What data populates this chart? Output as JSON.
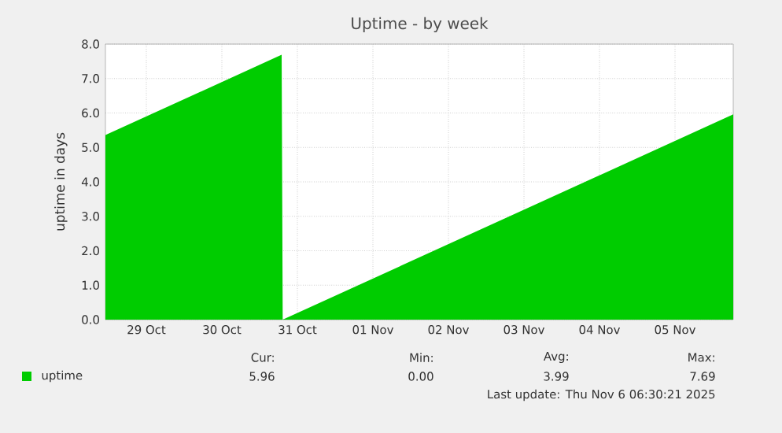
{
  "chart_data": {
    "type": "area",
    "title": "Uptime - by week",
    "ylabel": "uptime in days",
    "x": [
      "2025-10-28T23:00",
      "2025-10-31T07:00",
      "2025-10-31T07:20",
      "2025-11-06T06:30"
    ],
    "series": [
      {
        "name": "uptime",
        "color": "#00cc00",
        "values": [
          5.36,
          7.69,
          0.0,
          5.96
        ]
      }
    ],
    "xlim": [
      "2025-10-28T23:00",
      "2025-11-06T06:30"
    ],
    "xticks": [
      {
        "value": "2025-10-29T12:00",
        "label": "29 Oct"
      },
      {
        "value": "2025-10-30T12:00",
        "label": "30 Oct"
      },
      {
        "value": "2025-10-31T12:00",
        "label": "31 Oct"
      },
      {
        "value": "2025-11-01T12:00",
        "label": "01 Nov"
      },
      {
        "value": "2025-11-02T12:00",
        "label": "02 Nov"
      },
      {
        "value": "2025-11-03T12:00",
        "label": "03 Nov"
      },
      {
        "value": "2025-11-04T12:00",
        "label": "04 Nov"
      },
      {
        "value": "2025-11-05T12:00",
        "label": "05 Nov"
      }
    ],
    "ylim": [
      0,
      8
    ],
    "yticks": [
      {
        "value": 0,
        "label": "0.0"
      },
      {
        "value": 1,
        "label": "1.0"
      },
      {
        "value": 2,
        "label": "2.0"
      },
      {
        "value": 3,
        "label": "3.0"
      },
      {
        "value": 4,
        "label": "4.0"
      },
      {
        "value": 5,
        "label": "5.0"
      },
      {
        "value": 6,
        "label": "6.0"
      },
      {
        "value": 7,
        "label": "7.0"
      },
      {
        "value": 8,
        "label": "8.0"
      }
    ],
    "grid": true,
    "legend": "bottom left",
    "annotations": [
      "Cur:",
      "Min:",
      "Avg:",
      "Max:",
      "5.96",
      "0.00",
      "3.99",
      "7.69",
      "Last update: Thu Nov 6 06:30:21 2025"
    ]
  }
}
